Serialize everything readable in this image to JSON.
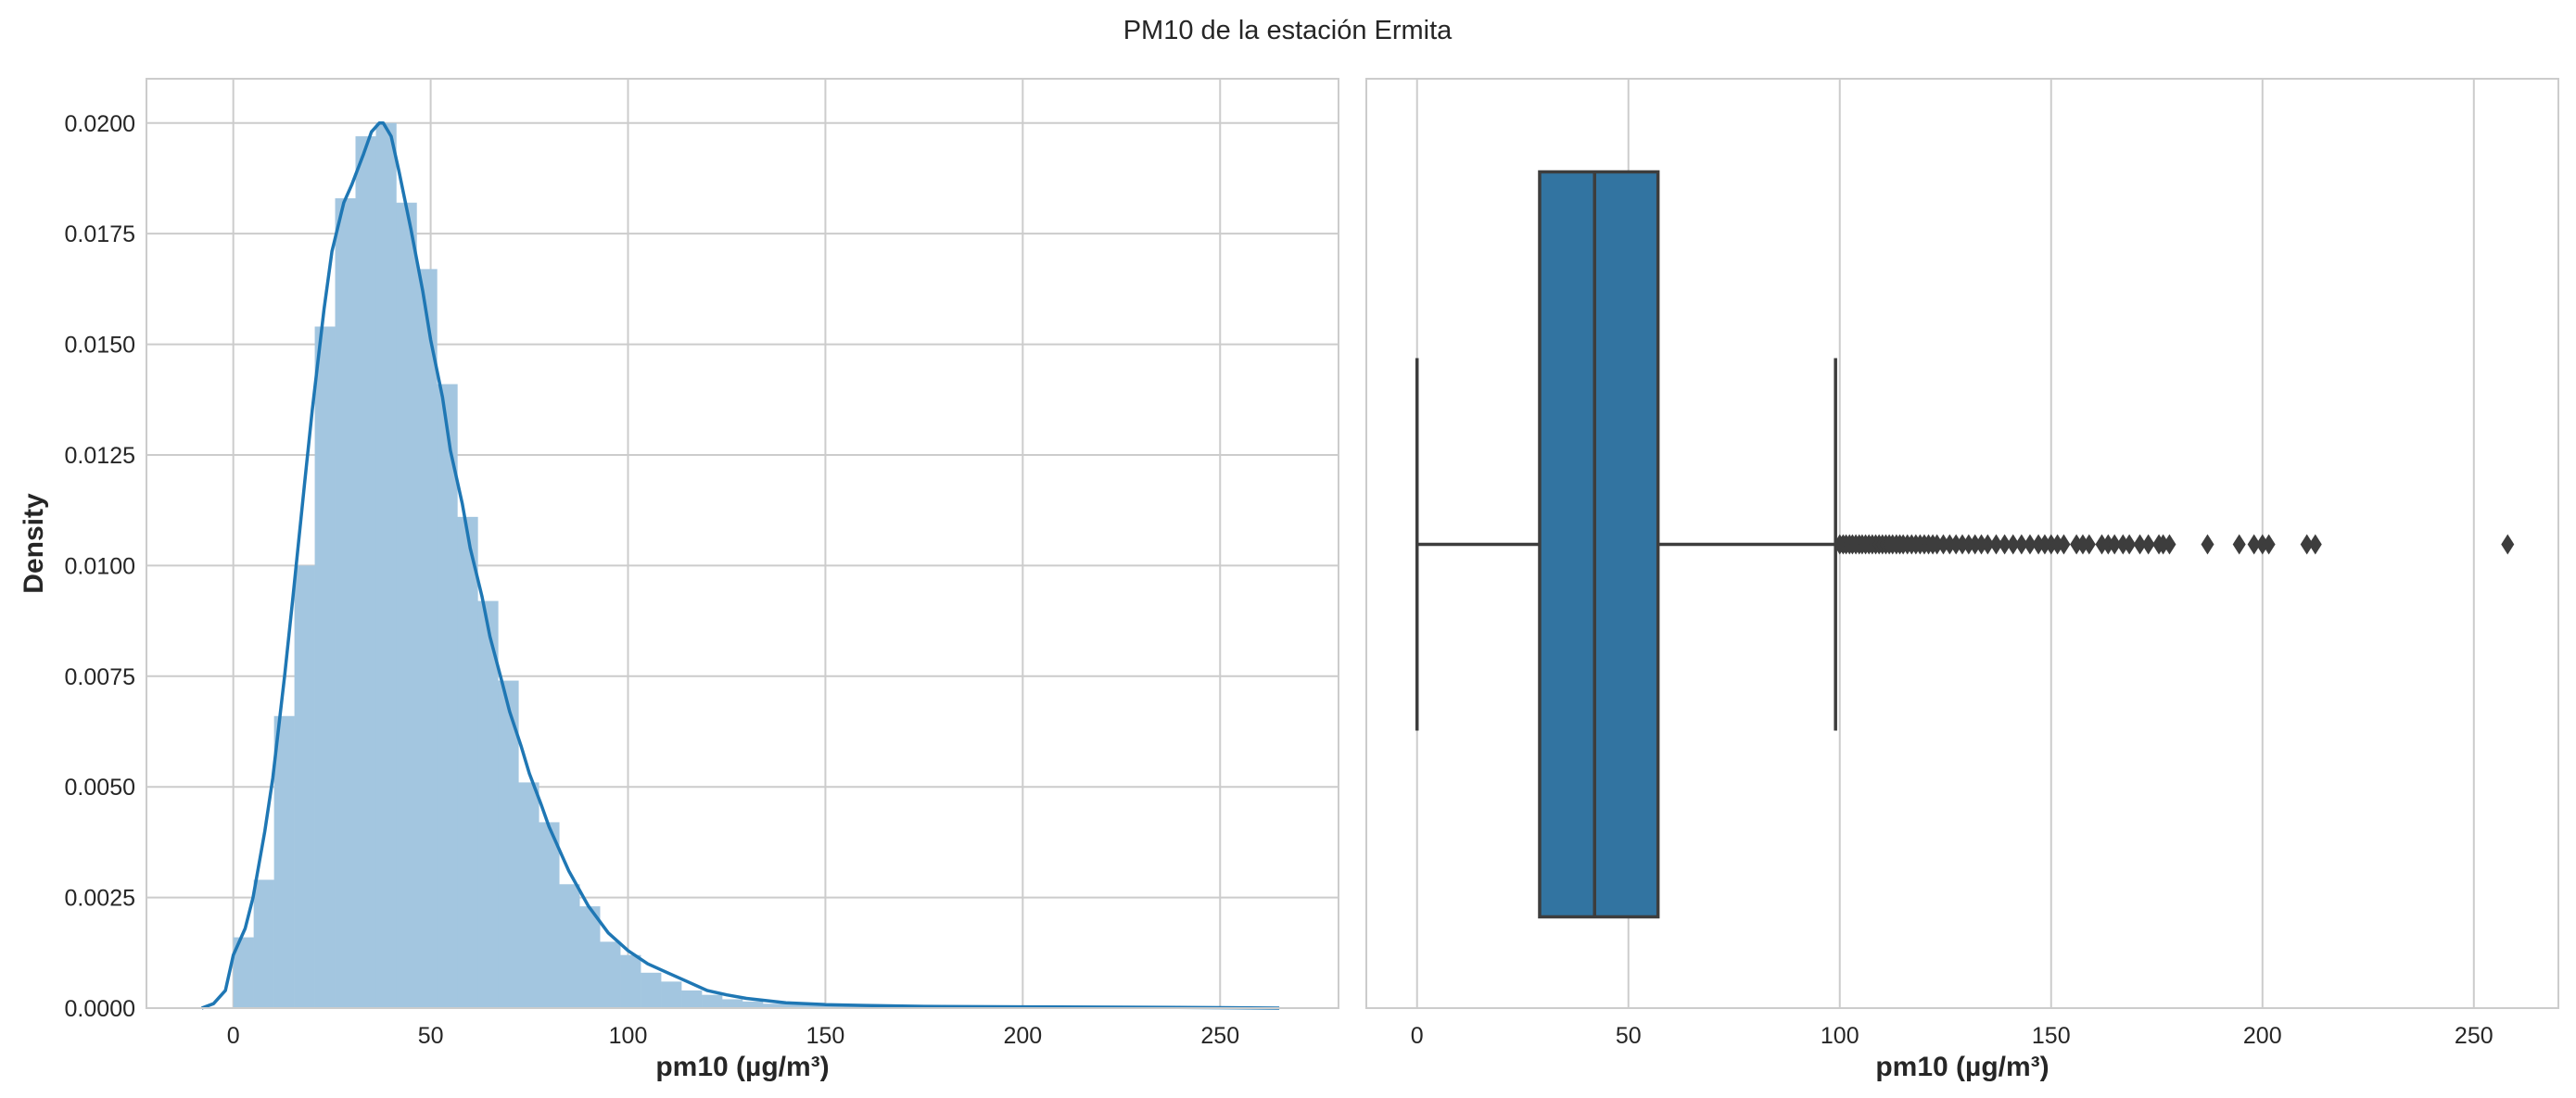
{
  "figure": {
    "title": "PM10 de la estación Ermita"
  },
  "chart_data": [
    {
      "type": "histogram",
      "panel": "left",
      "xlabel": "pm10 (µg/m³)",
      "ylabel": "Density",
      "xlim": [
        -22,
        280
      ],
      "ylim": [
        0,
        0.021
      ],
      "x_ticks": [
        0,
        50,
        100,
        150,
        200,
        250
      ],
      "x_tick_labels": [
        "0",
        "50",
        "100",
        "150",
        "200",
        "250"
      ],
      "y_ticks": [
        0,
        0.0025,
        0.005,
        0.0075,
        0.01,
        0.0125,
        0.015,
        0.0175,
        0.02
      ],
      "y_tick_labels": [
        "0.0000",
        "0.0025",
        "0.0050",
        "0.0075",
        "0.0100",
        "0.0125",
        "0.0150",
        "0.0175",
        "0.0200"
      ],
      "grid": true,
      "bar_color": "#a3c6e0",
      "line_color": "#1f77b4",
      "bins": {
        "start": 0,
        "width": 5.16,
        "values": [
          0.0016,
          0.0029,
          0.0066,
          0.01,
          0.0154,
          0.0183,
          0.0197,
          0.02,
          0.0182,
          0.0167,
          0.0141,
          0.0111,
          0.0092,
          0.0074,
          0.0051,
          0.0042,
          0.0028,
          0.0023,
          0.0015,
          0.0012,
          0.0008,
          0.0006,
          0.0004,
          0.0003,
          0.0002,
          0.00015,
          0.0001,
          0.0001,
          8e-05,
          6e-05,
          5e-05,
          4e-05,
          4e-05,
          3e-05,
          3e-05,
          2e-05,
          2e-05,
          2e-05,
          2e-05,
          2e-05,
          2e-05,
          1e-05,
          1e-05,
          1e-05,
          1e-05,
          1e-05,
          1e-05,
          1e-05,
          1e-05,
          1e-05
        ]
      },
      "kde": {
        "x": [
          -8,
          -5,
          -2,
          0,
          3,
          5,
          8,
          10,
          13,
          15,
          18,
          20,
          23,
          25,
          28,
          30,
          33,
          35,
          37,
          38,
          40,
          42,
          45,
          48,
          50,
          53,
          55,
          58,
          60,
          63,
          65,
          68,
          70,
          73,
          75,
          78,
          80,
          85,
          90,
          95,
          100,
          105,
          110,
          115,
          120,
          125,
          130,
          140,
          150,
          160,
          175,
          200,
          225,
          250,
          265
        ],
        "y": [
          0,
          0.0001,
          0.0004,
          0.0012,
          0.0018,
          0.0025,
          0.004,
          0.0052,
          0.0075,
          0.0092,
          0.0118,
          0.0135,
          0.0158,
          0.0171,
          0.0182,
          0.0186,
          0.0193,
          0.0198,
          0.02,
          0.02,
          0.0197,
          0.0189,
          0.0176,
          0.0162,
          0.0151,
          0.0138,
          0.0126,
          0.0114,
          0.0104,
          0.0093,
          0.0084,
          0.0074,
          0.0067,
          0.0059,
          0.0053,
          0.0046,
          0.0041,
          0.0031,
          0.0023,
          0.0017,
          0.0013,
          0.001,
          0.0008,
          0.0006,
          0.0004,
          0.0003,
          0.00022,
          0.00012,
          8e-05,
          6e-05,
          4e-05,
          3e-05,
          2e-05,
          1e-05,
          0
        ]
      }
    },
    {
      "type": "box",
      "panel": "right",
      "xlabel": "pm10 (µg/m³)",
      "xlim": [
        -12,
        270
      ],
      "x_ticks": [
        0,
        50,
        100,
        150,
        200,
        250
      ],
      "x_tick_labels": [
        "0",
        "50",
        "100",
        "150",
        "200",
        "250"
      ],
      "grid": true,
      "box_color": "#3274a1",
      "edge_color": "#3d3d3d",
      "whisker_low": 0,
      "q1": 29,
      "median": 42,
      "q3": 57,
      "whisker_high": 99,
      "outliers": [
        100,
        100.8,
        101.5,
        102.3,
        103,
        103.8,
        104.6,
        105.3,
        106.1,
        106.9,
        107.7,
        108.5,
        109.3,
        110.1,
        110.9,
        111.7,
        112.5,
        113.4,
        114.2,
        115,
        116,
        117,
        118,
        119,
        120,
        121,
        122,
        123,
        124.5,
        126,
        127.5,
        129,
        130.5,
        132,
        133.5,
        135,
        137,
        139,
        141,
        143,
        145,
        147,
        148.5,
        150,
        151.5,
        153,
        156,
        157.5,
        159,
        162,
        163.5,
        165,
        167,
        168.5,
        171,
        173,
        175.5,
        176.5,
        178,
        187,
        194.5,
        198,
        200,
        201.5,
        210.5,
        212.5,
        258
      ]
    }
  ]
}
